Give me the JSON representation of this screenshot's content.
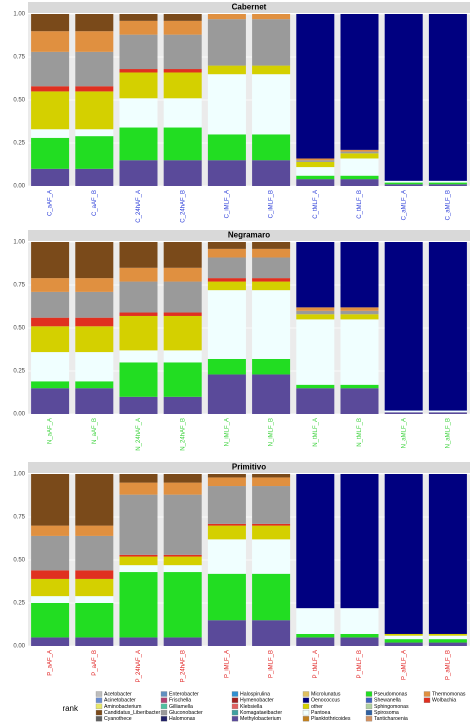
{
  "chart_data": {
    "type": "bar",
    "stacked": true,
    "ylim": [
      0,
      1
    ],
    "yticks": [
      {
        "value": 0,
        "label": "0.00"
      },
      {
        "value": 0.25,
        "label": "0.25"
      },
      {
        "value": 0.5,
        "label": "0.50"
      },
      {
        "value": 0.75,
        "label": "0.75"
      },
      {
        "value": 1,
        "label": "1.00"
      }
    ],
    "legend_title": "rank",
    "legend": [
      {
        "name": "Acetobacter",
        "color": "#bdbdbd"
      },
      {
        "name": "Acinetobacter",
        "color": "#6a8cd0"
      },
      {
        "name": "Aminobacterium",
        "color": "#e8e86a"
      },
      {
        "name": "Candidatus_Liberibacter",
        "color": "#7a4a1a"
      },
      {
        "name": "Cyanothece",
        "color": "#606060"
      },
      {
        "name": "Enterobacter",
        "color": "#6090c0"
      },
      {
        "name": "Frischella",
        "color": "#b04070"
      },
      {
        "name": "Gilliamella",
        "color": "#50c0a0"
      },
      {
        "name": "Gluconobacter",
        "color": "#9a9a9a"
      },
      {
        "name": "Halomonas",
        "color": "#222266"
      },
      {
        "name": "Halospirulina",
        "color": "#3090d0"
      },
      {
        "name": "Hymenobacter",
        "color": "#a02020"
      },
      {
        "name": "Klebsiella",
        "color": "#e06060"
      },
      {
        "name": "Komagataeibacter",
        "color": "#40a0a0"
      },
      {
        "name": "Methylobacterium",
        "color": "#5a4a9a"
      },
      {
        "name": "Microlunatus",
        "color": "#e0c060"
      },
      {
        "name": "Oenococcus",
        "color": "#000080"
      },
      {
        "name": "other",
        "color": "#d4d000"
      },
      {
        "name": "Pantoea",
        "color": "#f0ffff"
      },
      {
        "name": "Planktothricoides",
        "color": "#c08020"
      },
      {
        "name": "Pseudomonas",
        "color": "#22dd22"
      },
      {
        "name": "Shewanella",
        "color": "#4060c0"
      },
      {
        "name": "Sphingomonas",
        "color": "#b0d0a0"
      },
      {
        "name": "Spirosoma",
        "color": "#3060a0"
      },
      {
        "name": "Tanticharoenia",
        "color": "#d09060"
      },
      {
        "name": "Thermomonas",
        "color": "#e09040"
      },
      {
        "name": "Wolbachia",
        "color": "#e03020"
      }
    ],
    "facets": [
      {
        "title": "Cabernet",
        "label_color": "#2a3cd8",
        "categories": [
          "C_aAF_A",
          "C_aAF_B",
          "C_24hAF_A",
          "C_24hAF_B",
          "C_iMLF_A",
          "C_iMLF_B",
          "C_tMLF_A",
          "C_tMLF_B",
          "C_aMLF_A",
          "C_aMLF_B"
        ],
        "series": [
          {
            "color": "#5a4a9a",
            "values": [
              0.1,
              0.1,
              0.15,
              0.15,
              0.15,
              0.15,
              0.04,
              0.04,
              0.01,
              0.01
            ]
          },
          {
            "color": "#22dd22",
            "values": [
              0.18,
              0.19,
              0.19,
              0.19,
              0.15,
              0.15,
              0.02,
              0.02,
              0.01,
              0.01
            ]
          },
          {
            "color": "#f0ffff",
            "values": [
              0.05,
              0.04,
              0.17,
              0.17,
              0.35,
              0.35,
              0.05,
              0.1,
              0.01,
              0.01
            ]
          },
          {
            "color": "#d4d000",
            "values": [
              0.22,
              0.22,
              0.15,
              0.15,
              0.05,
              0.05,
              0.03,
              0.03,
              0,
              0
            ]
          },
          {
            "color": "#e03020",
            "values": [
              0.03,
              0.03,
              0.02,
              0.02,
              0,
              0,
              0,
              0,
              0,
              0
            ]
          },
          {
            "color": "#9a9a9a",
            "values": [
              0.2,
              0.2,
              0.2,
              0.2,
              0.27,
              0.27,
              0.01,
              0.01,
              0,
              0
            ]
          },
          {
            "color": "#e09040",
            "values": [
              0.12,
              0.12,
              0.08,
              0.08,
              0.03,
              0.03,
              0.01,
              0.01,
              0,
              0
            ]
          },
          {
            "color": "#7a4a1a",
            "values": [
              0.1,
              0.1,
              0.04,
              0.04,
              0,
              0,
              0,
              0,
              0,
              0
            ]
          },
          {
            "color": "#000080",
            "values": [
              0,
              0,
              0,
              0,
              0,
              0,
              0.84,
              0.79,
              0.97,
              0.97
            ]
          }
        ]
      },
      {
        "title": "Negramaro",
        "label_color": "#3ad23a",
        "categories": [
          "N_aAF_A",
          "N_aAF_B",
          "N_24hAF_A",
          "N_24hAF_B",
          "N_iMLF_A",
          "N_iMLF_B",
          "N_tMLF_A",
          "N_tMLF_B",
          "N_aMLF_A",
          "N_aMLF_B"
        ],
        "series": [
          {
            "color": "#5a4a9a",
            "values": [
              0.15,
              0.15,
              0.1,
              0.1,
              0.23,
              0.23,
              0.15,
              0.15,
              0.01,
              0.01
            ]
          },
          {
            "color": "#22dd22",
            "values": [
              0.04,
              0.04,
              0.2,
              0.2,
              0.09,
              0.09,
              0.02,
              0.02,
              0,
              0
            ]
          },
          {
            "color": "#f0ffff",
            "values": [
              0.17,
              0.17,
              0.07,
              0.07,
              0.4,
              0.4,
              0.38,
              0.38,
              0.01,
              0.01
            ]
          },
          {
            "color": "#d4d000",
            "values": [
              0.15,
              0.15,
              0.2,
              0.2,
              0.05,
              0.05,
              0.03,
              0.03,
              0,
              0
            ]
          },
          {
            "color": "#e03020",
            "values": [
              0.05,
              0.05,
              0.02,
              0.02,
              0.02,
              0.02,
              0,
              0,
              0,
              0
            ]
          },
          {
            "color": "#9a9a9a",
            "values": [
              0.15,
              0.15,
              0.18,
              0.18,
              0.12,
              0.12,
              0.02,
              0.02,
              0,
              0
            ]
          },
          {
            "color": "#e09040",
            "values": [
              0.08,
              0.08,
              0.08,
              0.08,
              0.05,
              0.05,
              0.02,
              0.02,
              0,
              0
            ]
          },
          {
            "color": "#7a4a1a",
            "values": [
              0.21,
              0.21,
              0.15,
              0.15,
              0.04,
              0.04,
              0,
              0,
              0,
              0
            ]
          },
          {
            "color": "#000080",
            "values": [
              0,
              0,
              0,
              0,
              0,
              0,
              0.38,
              0.38,
              0.98,
              0.98
            ]
          }
        ]
      },
      {
        "title": "Primitivo",
        "label_color": "#e02020",
        "categories": [
          "P_aAF_A",
          "P_aAF_B",
          "P_24hAF_A",
          "P_24hAF_B",
          "P_iMLF_A",
          "P_iMLF_B",
          "P_tMLF_A",
          "P_tMLF_B",
          "P_aMLF_A",
          "P_aMLF_B"
        ],
        "series": [
          {
            "color": "#5a4a9a",
            "values": [
              0.05,
              0.05,
              0.05,
              0.05,
              0.15,
              0.15,
              0.05,
              0.05,
              0.02,
              0.02
            ]
          },
          {
            "color": "#22dd22",
            "values": [
              0.2,
              0.2,
              0.38,
              0.38,
              0.27,
              0.27,
              0.02,
              0.02,
              0.02,
              0.02
            ]
          },
          {
            "color": "#f0ffff",
            "values": [
              0.04,
              0.04,
              0.04,
              0.04,
              0.2,
              0.2,
              0.15,
              0.15,
              0.02,
              0.02
            ]
          },
          {
            "color": "#d4d000",
            "values": [
              0.1,
              0.1,
              0.05,
              0.05,
              0.08,
              0.08,
              0,
              0,
              0.01,
              0.01
            ]
          },
          {
            "color": "#e03020",
            "values": [
              0.05,
              0.05,
              0.01,
              0.01,
              0.01,
              0.01,
              0,
              0,
              0,
              0
            ]
          },
          {
            "color": "#9a9a9a",
            "values": [
              0.2,
              0.2,
              0.35,
              0.35,
              0.22,
              0.22,
              0,
              0,
              0,
              0
            ]
          },
          {
            "color": "#e09040",
            "values": [
              0.06,
              0.06,
              0.07,
              0.07,
              0.05,
              0.05,
              0,
              0,
              0,
              0
            ]
          },
          {
            "color": "#7a4a1a",
            "values": [
              0.3,
              0.3,
              0.05,
              0.05,
              0.02,
              0.02,
              0,
              0,
              0,
              0
            ]
          },
          {
            "color": "#000080",
            "values": [
              0,
              0,
              0,
              0,
              0,
              0,
              0.78,
              0.78,
              0.93,
              0.93
            ]
          }
        ]
      }
    ]
  }
}
